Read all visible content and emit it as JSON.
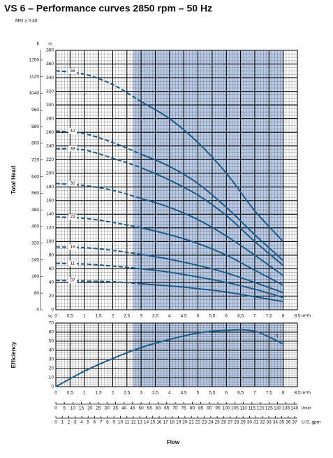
{
  "title": "VS 6 – Performance curves 2850 rpm – 50 Hz",
  "subtitle": "MEI ≥ 0,40",
  "x_axis_label": "Flow",
  "chart_data": [
    {
      "type": "line",
      "y_label": "Total Head",
      "y_unit": "m",
      "y2_unit": "ft",
      "x_unit": "m³/h",
      "x": [
        0,
        1,
        2,
        3,
        4,
        5,
        6,
        7,
        8
      ],
      "series": [
        {
          "name": "56",
          "color": "#1d5c8a",
          "values": [
            350,
            345,
            330,
            305,
            280,
            245,
            200,
            145,
            100
          ]
        },
        {
          "name": "42",
          "color": "#1d5c8a",
          "values": [
            262,
            258,
            245,
            228,
            210,
            185,
            150,
            110,
            72
          ]
        },
        {
          "name": "38",
          "color": "#1d5c8a",
          "values": [
            236,
            234,
            222,
            208,
            190,
            168,
            138,
            100,
            65
          ]
        },
        {
          "name": "30",
          "color": "#1d5c8a",
          "values": [
            185,
            182,
            175,
            163,
            150,
            132,
            108,
            80,
            50
          ]
        },
        {
          "name": "22",
          "color": "#1d5c8a",
          "values": [
            136,
            134,
            128,
            120,
            110,
            97,
            80,
            58,
            36
          ]
        },
        {
          "name": "15",
          "color": "#1d5c8a",
          "values": [
            92,
            91,
            87,
            81,
            74,
            65,
            54,
            40,
            25
          ]
        },
        {
          "name": "11",
          "color": "#1d5c8a",
          "values": [
            68,
            67,
            64,
            60,
            55,
            48,
            40,
            30,
            18
          ]
        },
        {
          "name": "07",
          "color": "#1d5c8a",
          "values": [
            43,
            42,
            41,
            38,
            35,
            31,
            26,
            19,
            12
          ]
        }
      ],
      "xlim": [
        0,
        8.5
      ],
      "xticks": [
        0,
        {
          "value": 0.5,
          "label": "0,5"
        },
        1,
        {
          "value": 1.5,
          "label": "1,5"
        },
        2,
        {
          "value": 2.5,
          "label": "2,5"
        },
        3,
        {
          "value": 3.5,
          "label": "3,5"
        },
        4,
        {
          "value": 4.5,
          "label": "4,5"
        },
        5,
        {
          "value": 5.5,
          "label": "5,5"
        },
        6,
        {
          "value": 6.5,
          "label": "6,5"
        },
        7,
        {
          "value": 7.5,
          "label": "7,5"
        },
        8,
        {
          "value": 8.5,
          "label": "8,5"
        }
      ],
      "ylim": [
        0,
        380
      ],
      "yticks": [
        0,
        20,
        40,
        60,
        80,
        100,
        120,
        140,
        160,
        180,
        200,
        220,
        240,
        260,
        280,
        300,
        320,
        340,
        360,
        380
      ],
      "y2lim": [
        0,
        1246.7
      ],
      "y2ticks": [
        0,
        80,
        160,
        240,
        320,
        400,
        480,
        560,
        640,
        720,
        800,
        880,
        960,
        1040,
        1120,
        1200
      ],
      "highlight_range": [
        2.7,
        8
      ],
      "highlight_color": "#b9cbe6",
      "dashed_below_range": true,
      "grid": true
    },
    {
      "type": "line",
      "y_label": "Efficiency",
      "y_unit": "%",
      "x_unit": "m³/h",
      "x": [
        0,
        1,
        2,
        3,
        4,
        5,
        6,
        7,
        8
      ],
      "series": [
        {
          "name": "η",
          "color": "#1d5c8a",
          "values": [
            0,
            17,
            31,
            43,
            52,
            59,
            62,
            61,
            47
          ]
        }
      ],
      "xlim": [
        0,
        8.5
      ],
      "xticks": [
        0,
        {
          "value": 0.5,
          "label": "0,5"
        },
        1,
        {
          "value": 1.5,
          "label": "1,5"
        },
        2,
        {
          "value": 2.5,
          "label": "2,5"
        },
        3,
        {
          "value": 3.5,
          "label": "3,5"
        },
        4,
        {
          "value": 4.5,
          "label": "4,5"
        },
        5,
        {
          "value": 5.5,
          "label": "5,5"
        },
        6,
        {
          "value": 6.5,
          "label": "6,5"
        },
        7,
        {
          "value": 7.5,
          "label": "7,5"
        },
        8,
        {
          "value": 8.5,
          "label": "8,5"
        }
      ],
      "ylim": [
        0,
        70
      ],
      "yticks": [
        0,
        10,
        20,
        30,
        40,
        50,
        60,
        70
      ],
      "highlight_range": [
        2.7,
        8
      ],
      "highlight_color": "#b9cbe6",
      "dashed_below_range": false,
      "grid": true,
      "extra_x_axes": [
        {
          "unit": "l/min",
          "lim": [
            0,
            141.67
          ],
          "ticks": [
            0,
            5,
            10,
            15,
            20,
            25,
            30,
            35,
            40,
            45,
            50,
            55,
            60,
            65,
            70,
            75,
            80,
            85,
            90,
            95,
            100,
            105,
            110,
            115,
            120,
            125,
            130,
            135,
            140
          ]
        },
        {
          "unit": "U.S. gpm",
          "lim": [
            0,
            37.42
          ],
          "ticks": [
            0,
            1,
            2,
            3,
            4,
            5,
            6,
            7,
            8,
            9,
            10,
            11,
            12,
            13,
            14,
            15,
            16,
            17,
            18,
            19,
            20,
            21,
            22,
            23,
            24,
            25,
            26,
            27,
            28,
            29,
            30,
            31,
            32,
            33,
            34,
            35,
            36,
            37
          ]
        }
      ]
    }
  ]
}
